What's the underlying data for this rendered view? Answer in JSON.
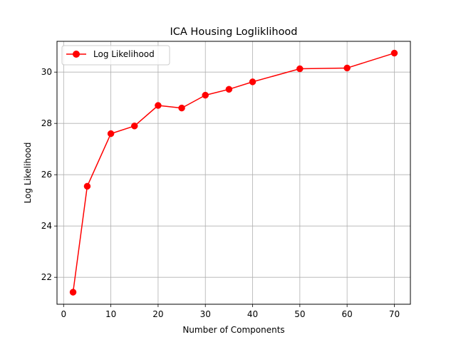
{
  "chart_data": {
    "type": "line",
    "title": "ICA Housing Logliklihood",
    "xlabel": "Number of Components",
    "ylabel": "Log Likelihood",
    "xlim": [
      -1.4,
      73.4
    ],
    "ylim": [
      20.95,
      31.2
    ],
    "xticks": [
      0,
      10,
      20,
      30,
      40,
      50,
      60,
      70
    ],
    "yticks": [
      22,
      24,
      26,
      28,
      30
    ],
    "grid": true,
    "legend_position": "upper-left",
    "series": [
      {
        "name": "Log Likelihood",
        "color": "#ff0000",
        "marker": "circle",
        "x": [
          2,
          5,
          10,
          15,
          20,
          25,
          30,
          35,
          40,
          50,
          60,
          70
        ],
        "y": [
          21.42,
          25.55,
          27.6,
          27.9,
          28.7,
          28.6,
          29.1,
          29.33,
          29.62,
          30.13,
          30.16,
          30.74
        ]
      }
    ]
  }
}
